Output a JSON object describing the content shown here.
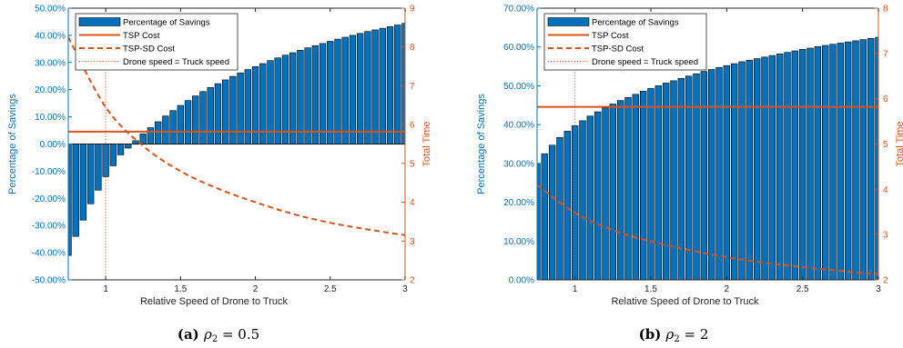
{
  "colors": {
    "bar": "#0072BD",
    "cost": "#D95319",
    "left_axis": "#0072BD",
    "right_axis": "#D95319"
  },
  "chart_data": [
    {
      "type": "bar",
      "caption": {
        "label": "(a)",
        "formula": "ρ2 = 0.5",
        "symbol": "ρ",
        "sub": "2",
        "rest": " = 0.5"
      },
      "xlabel": "Relative Speed of Drone to Truck",
      "ylabel": "Percentage of Savings",
      "y2label": "Total Time",
      "xlim": [
        0.75,
        3
      ],
      "ylim": [
        -0.5,
        0.5
      ],
      "y2lim": [
        2,
        9
      ],
      "xticks": [
        1,
        1.5,
        2,
        2.5,
        3
      ],
      "xtick_labels": [
        "1",
        "1.5",
        "2",
        "2.5",
        "3"
      ],
      "yticks": [
        -0.5,
        -0.4,
        -0.3,
        -0.2,
        -0.1,
        0,
        0.1,
        0.2,
        0.3,
        0.4,
        0.5
      ],
      "ytick_labels": [
        "-50.00%",
        "-40.00%",
        "-30.00%",
        "-20.00%",
        "-10.00%",
        "0.00%",
        "10.00%",
        "20.00%",
        "30.00%",
        "40.00%",
        "50.00%"
      ],
      "y2ticks": [
        2,
        3,
        4,
        5,
        6,
        7,
        8,
        9
      ],
      "y2tick_labels": [
        "2",
        "3",
        "4",
        "5",
        "6",
        "7",
        "8",
        "9"
      ],
      "legend": [
        "Percentage of Savings",
        "TSP Cost",
        "TSP-SD Cost",
        "Drone speed = Truck speed"
      ],
      "legend_position": "top-left",
      "series": [
        {
          "name": "Percentage of Savings",
          "type": "bar",
          "x_start": 0.75,
          "x_step": 0.05,
          "values": [
            -0.41,
            -0.34,
            -0.28,
            -0.22,
            -0.17,
            -0.12,
            -0.08,
            -0.04,
            -0.015,
            0.012,
            0.037,
            0.06,
            0.082,
            0.103,
            0.123,
            0.142,
            0.16,
            0.177,
            0.193,
            0.208,
            0.222,
            0.236,
            0.249,
            0.262,
            0.274,
            0.285,
            0.296,
            0.307,
            0.317,
            0.327,
            0.336,
            0.345,
            0.354,
            0.362,
            0.37,
            0.378,
            0.386,
            0.393,
            0.4,
            0.407,
            0.414,
            0.42,
            0.426,
            0.432,
            0.438,
            0.444
          ]
        },
        {
          "name": "TSP Cost",
          "type": "hline",
          "axis": "right",
          "y": 5.82
        },
        {
          "name": "TSP-SD Cost",
          "type": "line",
          "axis": "right",
          "x": [
            0.75,
            1,
            1.25,
            1.5,
            1.75,
            2,
            2.25,
            2.5,
            2.75,
            3
          ],
          "values": [
            8.25,
            6.45,
            5.45,
            4.8,
            4.35,
            4.0,
            3.7,
            3.47,
            3.3,
            3.15
          ]
        },
        {
          "name": "Drone speed = Truck speed",
          "type": "vline",
          "x": 1
        }
      ]
    },
    {
      "type": "bar",
      "caption": {
        "label": "(b)",
        "formula": "ρ2 = 2",
        "symbol": "ρ",
        "sub": "2",
        "rest": " = 2"
      },
      "xlabel": "Relative Speed of Drone to Truck",
      "ylabel": "Percentage of Savings",
      "y2label": "Total Time",
      "xlim": [
        0.75,
        3
      ],
      "ylim": [
        0,
        0.7
      ],
      "y2lim": [
        2,
        8
      ],
      "xticks": [
        1,
        1.5,
        2,
        2.5,
        3
      ],
      "xtick_labels": [
        "1",
        "1.5",
        "2",
        "2.5",
        "3"
      ],
      "yticks": [
        0,
        0.1,
        0.2,
        0.3,
        0.4,
        0.5,
        0.6,
        0.7
      ],
      "ytick_labels": [
        "0.00%",
        "10.00%",
        "20.00%",
        "30.00%",
        "40.00%",
        "50.00%",
        "60.00%",
        "70.00%"
      ],
      "y2ticks": [
        2,
        3,
        4,
        5,
        6,
        7,
        8
      ],
      "y2tick_labels": [
        "2",
        "3",
        "4",
        "5",
        "6",
        "7",
        "8"
      ],
      "legend": [
        "Percentage of Savings",
        "TSP Cost",
        "TSP-SD Cost",
        "Drone speed = Truck speed"
      ],
      "legend_position": "top-left",
      "series": [
        {
          "name": "Percentage of Savings",
          "type": "bar",
          "x_start": 0.75,
          "x_step": 0.05,
          "values": [
            0.3,
            0.325,
            0.347,
            0.367,
            0.383,
            0.397,
            0.41,
            0.422,
            0.433,
            0.443,
            0.453,
            0.462,
            0.47,
            0.478,
            0.486,
            0.493,
            0.5,
            0.507,
            0.513,
            0.519,
            0.525,
            0.531,
            0.537,
            0.542,
            0.547,
            0.552,
            0.557,
            0.562,
            0.566,
            0.57,
            0.574,
            0.578,
            0.582,
            0.586,
            0.59,
            0.594,
            0.597,
            0.601,
            0.604,
            0.607,
            0.61,
            0.613,
            0.616,
            0.619,
            0.622,
            0.625
          ]
        },
        {
          "name": "TSP Cost",
          "type": "hline",
          "axis": "right",
          "y": 5.82
        },
        {
          "name": "TSP-SD Cost",
          "type": "line",
          "axis": "right",
          "x": [
            0.75,
            1,
            1.25,
            1.5,
            1.75,
            2,
            2.25,
            2.5,
            2.75,
            3
          ],
          "values": [
            4.1,
            3.48,
            3.1,
            2.85,
            2.66,
            2.5,
            2.38,
            2.28,
            2.2,
            2.12
          ]
        },
        {
          "name": "Drone speed = Truck speed",
          "type": "vline",
          "x": 1
        }
      ]
    }
  ]
}
